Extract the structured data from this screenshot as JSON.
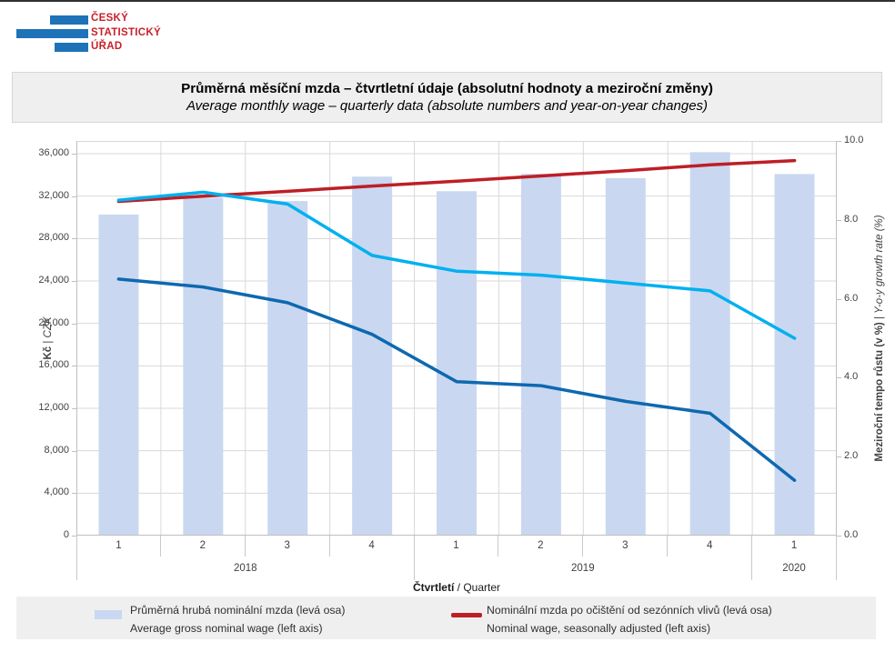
{
  "colors": {
    "bar_fill": "#c9d8f0",
    "red_line": "#be1e26",
    "cyan_line": "#00b0f0",
    "blue_line": "#0e68b0",
    "gridline": "#d9d9d9",
    "axis_line": "#bfbfbf",
    "tick_text": "#404040",
    "panel_bg": "#efefef",
    "logo_blue": "#1e73b8",
    "logo_red": "#c8202a"
  },
  "logo": {
    "line1": "ČESKÝ",
    "line2": "STATISTICKÝ",
    "line3": "ÚŘAD"
  },
  "header": {
    "title_cs": "Průměrná měsíční mzda – čtvrtletní údaje (absolutní hodnoty a meziroční změny)",
    "title_en": "Average monthly wage – quarterly data (absolute numbers and year-on-year changes)"
  },
  "chart_data": {
    "type": "combo-bar-line",
    "left_axis": {
      "title_bold": "Kč",
      "title_sep": " | ",
      "title_italic": "CZK",
      "min": 0,
      "tick_step": 4000,
      "max_plot": 37200,
      "ticks": [
        "0",
        "4,000",
        "8,000",
        "12,000",
        "16,000",
        "20,000",
        "24,000",
        "28,000",
        "32,000",
        "36,000"
      ]
    },
    "right_axis": {
      "title_bold": "Meziroční tempo růstu (v %)",
      "title_sep": " | ",
      "title_italic": "Y-o-y growth rate (%)",
      "min": 0,
      "max": 10,
      "tick_step": 2,
      "ticks": [
        "0.0",
        "2.0",
        "4.0",
        "6.0",
        "8.0",
        "10.0"
      ]
    },
    "x_axis": {
      "quarters": [
        "1",
        "2",
        "3",
        "4",
        "1",
        "2",
        "3",
        "4",
        "1"
      ],
      "year_groups": [
        {
          "label": "2018",
          "span": 4
        },
        {
          "label": "2019",
          "span": 4
        },
        {
          "label": "2020",
          "span": 1
        }
      ],
      "caption_bold": "Čtvrtletí",
      "caption_rest": "/ Quarter"
    },
    "grid": "on",
    "series": [
      {
        "id": "average-gross-nominal-wage",
        "type": "bar",
        "axis": "left",
        "color": "#c9d8f0",
        "values": [
          30265,
          31851,
          31533,
          33840,
          32466,
          34105,
          33697,
          36144,
          34077
        ]
      },
      {
        "id": "nominal-wage-seasonally-adjusted",
        "type": "line",
        "axis": "left",
        "color": "#be1e26",
        "values": [
          31500,
          32000,
          32450,
          32950,
          33400,
          33900,
          34400,
          34950,
          35350
        ]
      },
      {
        "id": "growth-rate-dark-blue",
        "type": "line",
        "axis": "right",
        "color": "#0e68b0",
        "values": [
          6.5,
          6.3,
          5.9,
          5.1,
          3.9,
          3.8,
          3.4,
          3.1,
          1.4
        ]
      },
      {
        "id": "growth-rate-cyan",
        "type": "line",
        "axis": "right",
        "color": "#00b0f0",
        "values": [
          8.5,
          8.7,
          8.4,
          7.1,
          6.7,
          6.6,
          6.4,
          6.2,
          5.0
        ]
      }
    ]
  },
  "legend": {
    "items": [
      {
        "label_cs": "Průměrná hrubá nominální mzda (levá osa)",
        "label_en": "Average gross nominal wage (left axis)"
      },
      {
        "label_cs": "Nominální mzda po očištění od sezónních vlivů (levá osa)",
        "label_en": "Nominal wage, seasonally adjusted (left axis)"
      }
    ]
  }
}
